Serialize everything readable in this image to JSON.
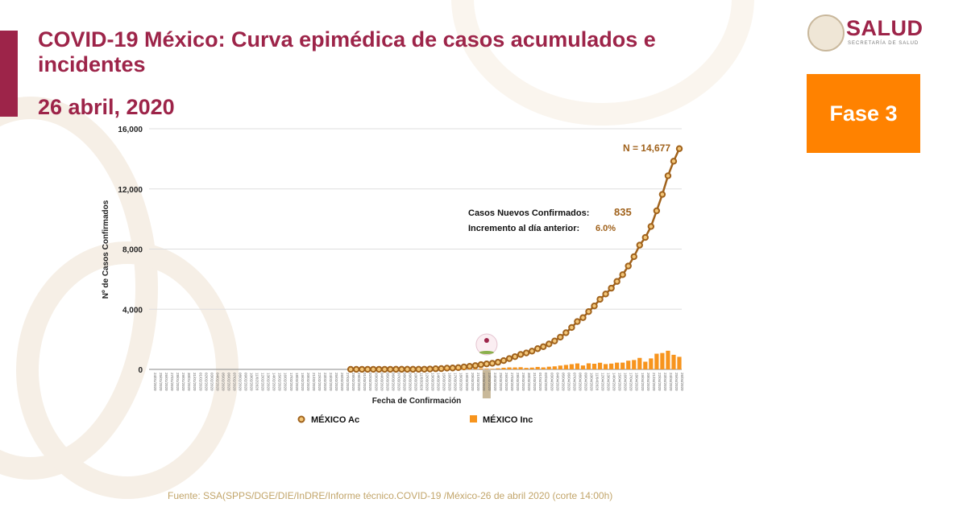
{
  "header": {
    "title": "COVID-19 México: Curva epimédica de casos acumulados e incidentes",
    "date": "26 abril, 2020",
    "logo_name": "SALUD",
    "logo_sub": "SECRETARÍA DE SALUD",
    "phase": "Fase 3"
  },
  "footer": "Fuente: SSA(SPPS/DGE/DIE/InDRE/Informe técnico.COVID-19 /México-26 de abril 2020 (corte 14:00h)",
  "colors": {
    "brand": "#9d2449",
    "phase": "#ff8200",
    "cumulative": "#a0621c",
    "incident": "#f7941d",
    "highlight": "#c9b99a"
  },
  "chart_data": {
    "type": "line",
    "xlabel": "Fecha de Confirmación",
    "ylabel": "Nº de Casos Confirmados",
    "ylim": [
      0,
      16000
    ],
    "yticks": [
      "0",
      "4,000",
      "8,000",
      "12,000",
      "16,000"
    ],
    "ytick_values": [
      0,
      4000,
      8000,
      12000,
      16000
    ],
    "grid": true,
    "legend": "bottom",
    "start_date": "2020-01-24",
    "end_date": "2020-04-26",
    "highlight_date": "23/03/2020",
    "annotation_total": "N = 14,677",
    "annotation_new_label": "Casos Nuevos Confirmados:",
    "annotation_new_value": "835",
    "annotation_inc_label": "Incremento al día anterior:",
    "annotation_inc_value": "6.0%",
    "series": [
      {
        "name": "MÉXICO Ac",
        "type": "line",
        "first_date": "2020-02-28",
        "values": [
          2,
          4,
          5,
          5,
          5,
          5,
          5,
          6,
          7,
          7,
          7,
          7,
          8,
          12,
          26,
          41,
          53,
          82,
          93,
          118,
          164,
          203,
          251,
          316,
          367,
          405,
          475,
          585,
          717,
          848,
          993,
          1094,
          1215,
          1378,
          1510,
          1688,
          1890,
          2143,
          2439,
          2785,
          3181,
          3441,
          3844,
          4219,
          4661,
          5014,
          5399,
          5847,
          6297,
          6875,
          7497,
          8261,
          8772,
          9501,
          10544,
          11633,
          12872,
          13842,
          14677
        ]
      },
      {
        "name": "MÉXICO Inc",
        "type": "bar",
        "first_date": "2020-02-28",
        "values": [
          2,
          2,
          1,
          0,
          0,
          0,
          0,
          1,
          1,
          0,
          0,
          0,
          1,
          4,
          14,
          15,
          12,
          29,
          11,
          25,
          46,
          39,
          48,
          65,
          51,
          38,
          70,
          110,
          132,
          131,
          145,
          101,
          121,
          163,
          132,
          178,
          202,
          253,
          296,
          346,
          396,
          260,
          403,
          375,
          442,
          353,
          385,
          448,
          450,
          578,
          622,
          764,
          511,
          729,
          1043,
          1089,
          1239,
          970,
          835
        ]
      }
    ]
  }
}
